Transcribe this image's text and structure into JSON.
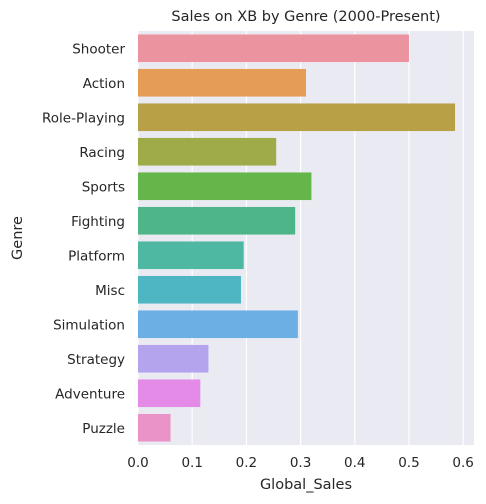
{
  "chart_data": {
    "type": "bar",
    "orientation": "horizontal",
    "title": "Sales on XB by Genre (2000-Present)",
    "xlabel": "Global_Sales",
    "ylabel": "Genre",
    "categories": [
      "Shooter",
      "Action",
      "Role-Playing",
      "Racing",
      "Sports",
      "Fighting",
      "Platform",
      "Misc",
      "Simulation",
      "Strategy",
      "Adventure",
      "Puzzle"
    ],
    "values": [
      0.5,
      0.31,
      0.585,
      0.255,
      0.32,
      0.29,
      0.195,
      0.19,
      0.295,
      0.13,
      0.115,
      0.06
    ],
    "colors": [
      "#ec93a0",
      "#e59c56",
      "#b8a046",
      "#9faa49",
      "#64b54a",
      "#4db587",
      "#4eb8a2",
      "#4eb5c3",
      "#6cafe4",
      "#b4a4ee",
      "#e48ae7",
      "#e993c9"
    ],
    "xlim": [
      0,
      0.62
    ],
    "xticks": [
      0.0,
      0.1,
      0.2,
      0.3,
      0.4,
      0.5,
      0.6
    ],
    "xtick_labels": [
      "0.0",
      "0.1",
      "0.2",
      "0.3",
      "0.4",
      "0.5",
      "0.6"
    ],
    "grid": true,
    "background": "#eaeaf2",
    "grid_color": "#ffffff"
  }
}
